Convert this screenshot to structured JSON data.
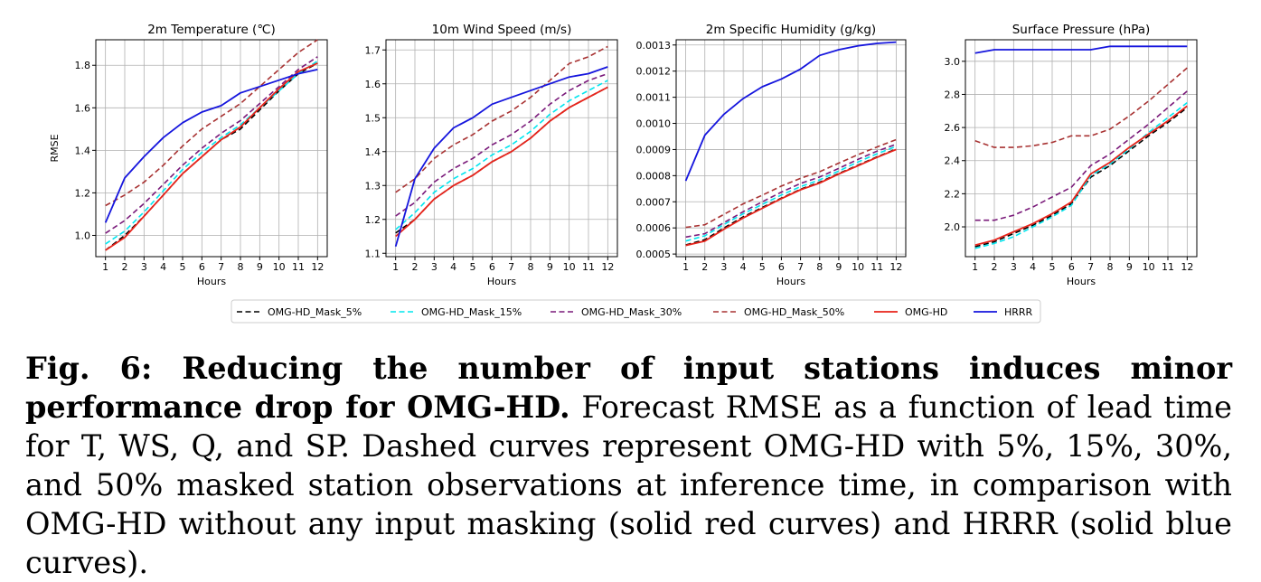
{
  "chart_data": [
    {
      "type": "line",
      "title": "2m Temperature (℃)",
      "xlabel": "Hours",
      "ylabel": "RMSE",
      "x": [
        1,
        2,
        3,
        4,
        5,
        6,
        7,
        8,
        9,
        10,
        11,
        12
      ],
      "xlim": [
        0.5,
        12.5
      ],
      "ylim": [
        0.9,
        1.92
      ],
      "yticks": [
        1.0,
        1.2,
        1.4,
        1.6,
        1.8
      ],
      "ytick_labels": [
        "1.0",
        "1.2",
        "1.4",
        "1.6",
        "1.8"
      ],
      "grid": true,
      "series": [
        {
          "values": [
            0.93,
            1.0,
            1.09,
            1.19,
            1.29,
            1.37,
            1.45,
            1.5,
            1.59,
            1.68,
            1.76,
            1.81
          ]
        },
        {
          "values": [
            0.96,
            1.02,
            1.11,
            1.21,
            1.31,
            1.39,
            1.46,
            1.52,
            1.6,
            1.68,
            1.76,
            1.82
          ]
        },
        {
          "values": [
            1.01,
            1.07,
            1.15,
            1.24,
            1.33,
            1.41,
            1.48,
            1.54,
            1.62,
            1.7,
            1.78,
            1.84
          ]
        },
        {
          "values": [
            1.14,
            1.19,
            1.25,
            1.33,
            1.42,
            1.5,
            1.56,
            1.62,
            1.7,
            1.78,
            1.86,
            1.92
          ]
        },
        {
          "values": [
            0.93,
            0.99,
            1.09,
            1.19,
            1.29,
            1.37,
            1.45,
            1.51,
            1.6,
            1.69,
            1.77,
            1.81
          ]
        },
        {
          "values": [
            1.06,
            1.27,
            1.37,
            1.46,
            1.53,
            1.58,
            1.61,
            1.67,
            1.7,
            1.73,
            1.76,
            1.78
          ]
        }
      ]
    },
    {
      "type": "line",
      "title": "10m Wind Speed (m/s)",
      "xlabel": "Hours",
      "ylabel": "",
      "x": [
        1,
        2,
        3,
        4,
        5,
        6,
        7,
        8,
        9,
        10,
        11,
        12
      ],
      "xlim": [
        0.5,
        12.5
      ],
      "ylim": [
        1.09,
        1.73
      ],
      "yticks": [
        1.1,
        1.2,
        1.3,
        1.4,
        1.5,
        1.6,
        1.7
      ],
      "ytick_labels": [
        "1.1",
        "1.2",
        "1.3",
        "1.4",
        "1.5",
        "1.6",
        "1.7"
      ],
      "grid": true,
      "series": [
        {
          "values": [
            1.16,
            1.2,
            1.26,
            1.3,
            1.33,
            1.37,
            1.4,
            1.44,
            1.49,
            1.53,
            1.56,
            1.59
          ]
        },
        {
          "values": [
            1.17,
            1.22,
            1.28,
            1.32,
            1.35,
            1.39,
            1.42,
            1.46,
            1.51,
            1.55,
            1.58,
            1.61
          ]
        },
        {
          "values": [
            1.21,
            1.25,
            1.31,
            1.35,
            1.38,
            1.42,
            1.45,
            1.49,
            1.54,
            1.58,
            1.61,
            1.63
          ]
        },
        {
          "values": [
            1.28,
            1.32,
            1.38,
            1.42,
            1.45,
            1.49,
            1.52,
            1.56,
            1.61,
            1.66,
            1.68,
            1.71
          ]
        },
        {
          "values": [
            1.15,
            1.2,
            1.26,
            1.3,
            1.33,
            1.37,
            1.4,
            1.44,
            1.49,
            1.53,
            1.56,
            1.59
          ]
        },
        {
          "values": [
            1.12,
            1.32,
            1.41,
            1.47,
            1.5,
            1.54,
            1.56,
            1.58,
            1.6,
            1.62,
            1.63,
            1.65
          ]
        }
      ]
    },
    {
      "type": "line",
      "title": "2m Specific Humidity (g/kg)",
      "xlabel": "Hours",
      "ylabel": "",
      "x": [
        1,
        2,
        3,
        4,
        5,
        6,
        7,
        8,
        9,
        10,
        11,
        12
      ],
      "xlim": [
        0.5,
        12.5
      ],
      "ylim": [
        0.00049,
        0.00132
      ],
      "yticks": [
        0.0005,
        0.0006,
        0.0007,
        0.0008,
        0.0009,
        0.001,
        0.0011,
        0.0012,
        0.0013
      ],
      "ytick_labels": [
        "0.0005",
        "0.0006",
        "0.0007",
        "0.0008",
        "0.0009",
        "0.0010",
        "0.0011",
        "0.0012",
        "0.0013"
      ],
      "grid": true,
      "series": [
        {
          "values": [
            0.000535,
            0.000555,
            0.0006,
            0.000642,
            0.000678,
            0.000714,
            0.000748,
            0.000775,
            0.000808,
            0.00084,
            0.000872,
            0.000902
          ]
        },
        {
          "values": [
            0.00055,
            0.00057,
            0.000613,
            0.000654,
            0.00069,
            0.000726,
            0.000758,
            0.000784,
            0.000818,
            0.000852,
            0.000884,
            0.000912
          ]
        },
        {
          "values": [
            0.000565,
            0.000578,
            0.00062,
            0.000662,
            0.0007,
            0.000737,
            0.00077,
            0.000795,
            0.000828,
            0.000862,
            0.000894,
            0.00092
          ]
        },
        {
          "values": [
            0.000602,
            0.000612,
            0.000652,
            0.000692,
            0.000725,
            0.00076,
            0.00079,
            0.000815,
            0.000848,
            0.00088,
            0.00091,
            0.000938
          ]
        },
        {
          "values": [
            0.000533,
            0.00055,
            0.000595,
            0.000638,
            0.000675,
            0.000712,
            0.000746,
            0.000772,
            0.000806,
            0.000838,
            0.00087,
            0.0009
          ]
        },
        {
          "values": [
            0.00078,
            0.000955,
            0.001035,
            0.001095,
            0.00114,
            0.00117,
            0.001208,
            0.00126,
            0.001282,
            0.001297,
            0.001306,
            0.001311
          ]
        }
      ]
    },
    {
      "type": "line",
      "title": "Surface Pressure (hPa)",
      "xlabel": "Hours",
      "ylabel": "",
      "x": [
        1,
        2,
        3,
        4,
        5,
        6,
        7,
        8,
        9,
        10,
        11,
        12
      ],
      "xlim": [
        0.5,
        12.5
      ],
      "ylim": [
        1.82,
        3.13
      ],
      "yticks": [
        2.0,
        2.2,
        2.4,
        2.6,
        2.8,
        3.0
      ],
      "ytick_labels": [
        "2.0",
        "2.2",
        "2.4",
        "2.6",
        "2.8",
        "3.0"
      ],
      "grid": true,
      "series": [
        {
          "values": [
            1.88,
            1.91,
            1.96,
            2.01,
            2.07,
            2.14,
            2.3,
            2.37,
            2.46,
            2.55,
            2.63,
            2.72
          ]
        },
        {
          "values": [
            1.87,
            1.9,
            1.94,
            2.0,
            2.06,
            2.13,
            2.31,
            2.38,
            2.47,
            2.57,
            2.66,
            2.75
          ]
        },
        {
          "values": [
            2.04,
            2.04,
            2.07,
            2.12,
            2.18,
            2.24,
            2.37,
            2.44,
            2.53,
            2.62,
            2.72,
            2.82
          ]
        },
        {
          "values": [
            2.52,
            2.48,
            2.48,
            2.49,
            2.51,
            2.55,
            2.55,
            2.59,
            2.67,
            2.76,
            2.86,
            2.96
          ]
        },
        {
          "values": [
            1.89,
            1.92,
            1.97,
            2.02,
            2.08,
            2.15,
            2.32,
            2.39,
            2.48,
            2.56,
            2.64,
            2.73
          ]
        },
        {
          "values": [
            3.05,
            3.07,
            3.07,
            3.07,
            3.07,
            3.07,
            3.07,
            3.09,
            3.09,
            3.09,
            3.09,
            3.09
          ]
        }
      ]
    }
  ],
  "legend": {
    "placement": "bottom-center",
    "entries": [
      {
        "label": "OMG-HD_Mask_5%",
        "color": "#000000",
        "dashed": true
      },
      {
        "label": "OMG-HD_Mask_15%",
        "color": "#00e5ee",
        "dashed": true
      },
      {
        "label": "OMG-HD_Mask_30%",
        "color": "#7a1a7a",
        "dashed": true
      },
      {
        "label": "OMG-HD_Mask_50%",
        "color": "#a83232",
        "dashed": true
      },
      {
        "label": "OMG-HD",
        "color": "#e8231a",
        "dashed": false
      },
      {
        "label": "HRRR",
        "color": "#1515dd",
        "dashed": false
      }
    ]
  },
  "caption": {
    "label": "Fig. 6",
    "separator": ": ",
    "bold_text": "Reducing the number of input stations induces minor performance drop for OMG-HD.",
    "body": " Forecast RMSE as a function of lead time for T, WS, Q, and SP. Dashed curves represent OMG-HD with 5%, 15%, 30%, and 50% masked station observations at inference time, in comparison with OMG-HD without any input masking (solid red curves) and HRRR (solid blue curves)."
  }
}
